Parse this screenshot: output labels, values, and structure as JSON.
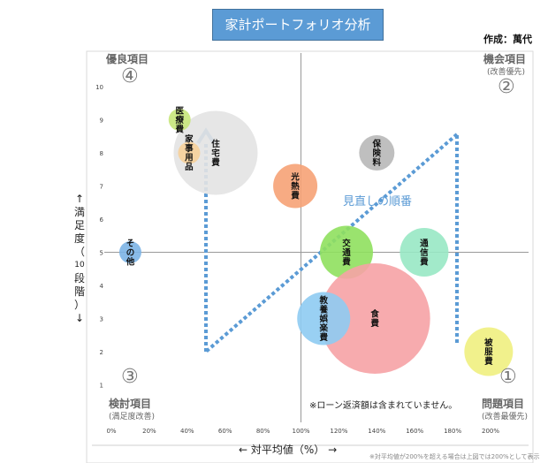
{
  "title": "家計ポートフォリオ分析",
  "author": "作成：萬代",
  "quadrants": {
    "top_left": {
      "label": "優良項目",
      "num": "④"
    },
    "top_right": {
      "label": "機会項目",
      "sub": "(改善優先)",
      "num": "②"
    },
    "bottom_left": {
      "label": "検討項目",
      "sub": "(満足度改善)",
      "num": "③"
    },
    "bottom_right": {
      "label": "問題項目",
      "sub": "(改善最優先)",
      "num": "①"
    }
  },
  "y_axis_title": [
    "↑",
    "満",
    "足",
    "度",
    "（",
    "10",
    "段",
    "階",
    "）",
    "↓"
  ],
  "x_axis_title": "← 対平均値（%） →",
  "note": "※ローン返済額は含まれていません。",
  "footnote": "※対平均値が200%を超える場合は上図では200%として表示",
  "arrow_label": "見直しの順番",
  "colors": {
    "arrow": "#5b9bd5",
    "axis": "#999999",
    "title_bg": "#5b9bd5"
  },
  "chart_data": {
    "type": "bubble",
    "x_ticks": [
      "0%",
      "20%",
      "40%",
      "60%",
      "80%",
      "100%",
      "120%",
      "140%",
      "160%",
      "180%",
      "200%"
    ],
    "y_ticks": [
      "1",
      "2",
      "3",
      "4",
      "5",
      "6",
      "7",
      "8",
      "9",
      "10"
    ],
    "xlim": [
      0,
      200
    ],
    "ylim": [
      0,
      10.5
    ],
    "crosshair": {
      "x": 100,
      "y": 5
    },
    "points": [
      {
        "label": "医療費",
        "x": 36,
        "y": 9,
        "size": 5,
        "color": "#c6e57a"
      },
      {
        "label": "家事用品",
        "x": 41,
        "y": 8,
        "size": 5,
        "color": "#f6d09a"
      },
      {
        "label": "住宅費",
        "x": 55,
        "y": 8,
        "size": 19,
        "color": "#e3e3e3"
      },
      {
        "label": "その他",
        "x": 10,
        "y": 5,
        "size": 5,
        "color": "#7cb4e6"
      },
      {
        "label": "光熱費",
        "x": 97,
        "y": 7,
        "size": 10,
        "color": "#f6a276"
      },
      {
        "label": "保険料",
        "x": 140,
        "y": 8,
        "size": 8,
        "color": "#b8b8b8"
      },
      {
        "label": "交通費",
        "x": 124,
        "y": 5,
        "size": 12,
        "color": "#8fe05e"
      },
      {
        "label": "通信費",
        "x": 165,
        "y": 5,
        "size": 11,
        "color": "#98e8c4"
      },
      {
        "label": "教養娯楽費",
        "x": 112,
        "y": 3,
        "size": 12,
        "color": "#8ecbf2"
      },
      {
        "label": "食費",
        "x": 139,
        "y": 3,
        "size": 25,
        "color": "#f6a2a5"
      },
      {
        "label": "被服費",
        "x": 199,
        "y": 2,
        "size": 11,
        "color": "#f0f080"
      }
    ]
  }
}
